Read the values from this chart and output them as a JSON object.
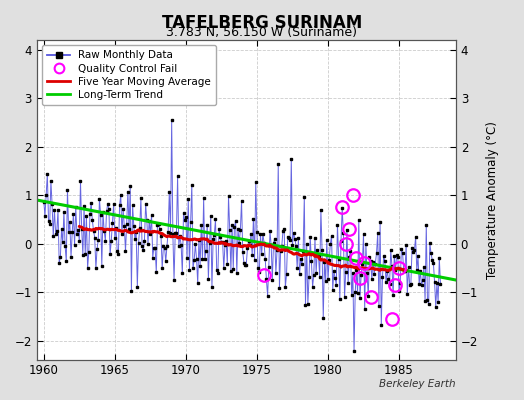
{
  "title": "TAFELBERG SURINAM",
  "subtitle": "3.783 N, 56.150 W (Suriname)",
  "ylabel": "Temperature Anomaly (°C)",
  "credit": "Berkeley Earth",
  "xlim": [
    1959.5,
    1989.0
  ],
  "ylim": [
    -2.4,
    4.2
  ],
  "yticks": [
    -2,
    -1,
    0,
    1,
    2,
    3,
    4
  ],
  "xticks": [
    1960,
    1965,
    1970,
    1975,
    1980,
    1985
  ],
  "fig_bg_color": "#e0e0e0",
  "plot_bg_color": "#ffffff",
  "raw_color": "#5555dd",
  "dot_color": "#000000",
  "ma_color": "#dd0000",
  "trend_color": "#00cc00",
  "qc_color": "#ff00ff",
  "trend_x": [
    1959.5,
    1989.0
  ],
  "trend_y": [
    0.9,
    -0.75
  ],
  "qc_x": [
    1975.5,
    1981.0,
    1981.25,
    1981.5,
    1981.75,
    1982.0,
    1982.25,
    1982.5,
    1983.0,
    1984.5,
    1984.75,
    1985.0
  ],
  "qc_y": [
    -0.65,
    0.75,
    0.0,
    0.3,
    1.0,
    -0.3,
    -0.7,
    -0.4,
    -1.1,
    -1.55,
    -0.85,
    -0.5
  ]
}
